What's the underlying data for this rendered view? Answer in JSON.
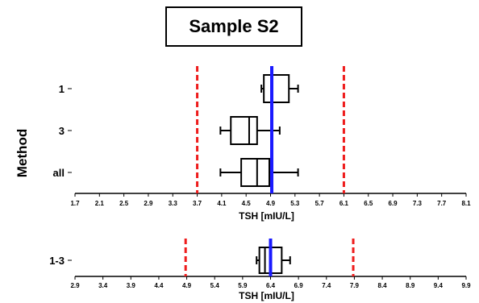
{
  "title": "Sample S2",
  "chart_data": [
    {
      "type": "boxplot",
      "ylabel": "Method",
      "xlabel": "TSH [mIU/L]",
      "xlim": [
        1.7,
        8.1
      ],
      "xticks": [
        "1.7",
        "2.1",
        "2.5",
        "2.9",
        "3.3",
        "3.7",
        "4.1",
        "4.5",
        "4.9",
        "5.3",
        "5.7",
        "6.1",
        "6.5",
        "6.9",
        "7.3",
        "7.7",
        "8.1"
      ],
      "categories": [
        "1",
        "3",
        "all"
      ],
      "boxes": [
        {
          "label": "1",
          "whisker_low": 4.75,
          "q1": 4.79,
          "median": 4.92,
          "q3": 5.2,
          "whisker_high": 5.35
        },
        {
          "label": "3",
          "whisker_low": 4.08,
          "q1": 4.25,
          "median": 4.55,
          "q3": 4.68,
          "whisker_high": 5.05
        },
        {
          "label": "all",
          "whisker_low": 4.08,
          "q1": 4.42,
          "median": 4.68,
          "q3": 4.88,
          "whisker_high": 5.35
        }
      ],
      "limits": [
        3.7,
        6.1
      ],
      "reference": 4.92,
      "colors": {
        "limit": "#ee1c1c",
        "reference": "#1a1aff"
      }
    },
    {
      "type": "boxplot",
      "xlabel": "TSH [mIU/L]",
      "xlim": [
        2.9,
        9.9
      ],
      "xticks": [
        "2.9",
        "3.4",
        "3.9",
        "4.4",
        "4.9",
        "5.4",
        "5.9",
        "6.4",
        "6.9",
        "7.4",
        "7.9",
        "8.4",
        "8.9",
        "9.4",
        "9.9"
      ],
      "categories": [
        "1-3"
      ],
      "boxes": [
        {
          "label": "1-3",
          "whisker_low": 6.15,
          "q1": 6.2,
          "median": 6.3,
          "q3": 6.6,
          "whisker_high": 6.75
        }
      ],
      "limits": [
        4.88,
        7.88
      ],
      "reference": 6.4,
      "colors": {
        "limit": "#ee1c1c",
        "reference": "#1a1aff"
      }
    }
  ]
}
